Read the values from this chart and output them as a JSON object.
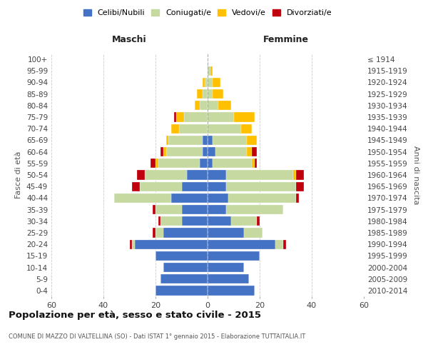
{
  "age_groups": [
    "0-4",
    "5-9",
    "10-14",
    "15-19",
    "20-24",
    "25-29",
    "30-34",
    "35-39",
    "40-44",
    "45-49",
    "50-54",
    "55-59",
    "60-64",
    "65-69",
    "70-74",
    "75-79",
    "80-84",
    "85-89",
    "90-94",
    "95-99",
    "100+"
  ],
  "birth_years": [
    "2010-2014",
    "2005-2009",
    "2000-2004",
    "1995-1999",
    "1990-1994",
    "1985-1989",
    "1980-1984",
    "1975-1979",
    "1970-1974",
    "1965-1969",
    "1960-1964",
    "1955-1959",
    "1950-1954",
    "1945-1949",
    "1940-1944",
    "1935-1939",
    "1930-1934",
    "1925-1929",
    "1920-1924",
    "1915-1919",
    "≤ 1914"
  ],
  "males": {
    "celibi": [
      20,
      18,
      17,
      20,
      28,
      17,
      10,
      10,
      14,
      10,
      8,
      3,
      2,
      2,
      0,
      0,
      0,
      0,
      0,
      0,
      0
    ],
    "coniugati": [
      0,
      0,
      0,
      0,
      1,
      3,
      8,
      10,
      22,
      16,
      16,
      16,
      14,
      13,
      11,
      9,
      3,
      2,
      1,
      0,
      0
    ],
    "vedovi": [
      0,
      0,
      0,
      0,
      0,
      0,
      0,
      0,
      0,
      0,
      0,
      1,
      1,
      1,
      3,
      3,
      2,
      2,
      1,
      0,
      0
    ],
    "divorziati": [
      0,
      0,
      0,
      0,
      1,
      1,
      1,
      1,
      0,
      3,
      3,
      2,
      1,
      0,
      0,
      1,
      0,
      0,
      0,
      0,
      0
    ]
  },
  "females": {
    "nubili": [
      18,
      16,
      14,
      20,
      26,
      14,
      9,
      7,
      8,
      7,
      7,
      2,
      3,
      2,
      0,
      0,
      0,
      0,
      0,
      0,
      0
    ],
    "coniugate": [
      0,
      0,
      0,
      0,
      3,
      7,
      10,
      22,
      26,
      27,
      26,
      15,
      12,
      13,
      13,
      10,
      4,
      2,
      2,
      1,
      0
    ],
    "vedove": [
      0,
      0,
      0,
      0,
      0,
      0,
      0,
      0,
      0,
      0,
      1,
      1,
      2,
      4,
      4,
      8,
      5,
      4,
      3,
      1,
      0
    ],
    "divorziate": [
      0,
      0,
      0,
      0,
      1,
      0,
      1,
      0,
      1,
      3,
      3,
      1,
      2,
      0,
      0,
      0,
      0,
      0,
      0,
      0,
      0
    ]
  },
  "color_celibi": "#4472c4",
  "color_coniugati": "#c5d9a0",
  "color_vedovi": "#ffc000",
  "color_divorziati": "#c0000c",
  "title": "Popolazione per età, sesso e stato civile - 2015",
  "subtitle": "COMUNE DI MAZZO DI VALTELLINA (SO) - Dati ISTAT 1° gennaio 2015 - Elaborazione TUTTAITALIA.IT",
  "label_maschi": "Maschi",
  "label_femmine": "Femmine",
  "ylabel_left": "Fasce di età",
  "ylabel_right": "Anni di nascita",
  "xlim": 60,
  "xtick_step": 20,
  "bg_color": "#ffffff",
  "grid_color": "#cccccc",
  "legend_labels": [
    "Celibi/Nubili",
    "Coniugati/e",
    "Vedovi/e",
    "Divorziati/e"
  ]
}
